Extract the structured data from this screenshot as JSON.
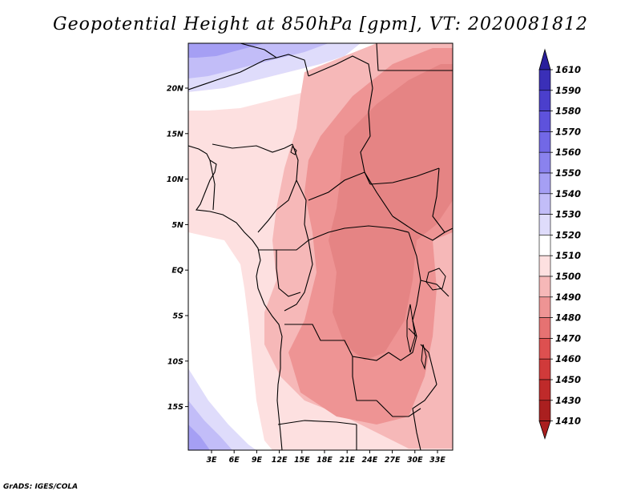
{
  "title": "Geopotential Height at 850hPa [gpm], VT: 2020081812",
  "footer": "GrADS: IGES/COLA",
  "map": {
    "lat_labels": [
      "20N",
      "15N",
      "10N",
      "5N",
      "EQ",
      "5S",
      "10S",
      "15S"
    ],
    "lon_labels": [
      "3E",
      "6E",
      "9E",
      "12E",
      "15E",
      "18E",
      "21E",
      "24E",
      "27E",
      "30E",
      "33E"
    ]
  },
  "colorbar": {
    "levels": [
      "1610",
      "1590",
      "1580",
      "1570",
      "1560",
      "1550",
      "1540",
      "1530",
      "1520",
      "1510",
      "1500",
      "1490",
      "1480",
      "1470",
      "1460",
      "1450",
      "1430",
      "1410"
    ],
    "colors": [
      "#2a1f9c",
      "#3a2fb8",
      "#4b3fcc",
      "#5e52dc",
      "#7268e6",
      "#8a82ee",
      "#a59ff4",
      "#c2bdf8",
      "#dfdcfb",
      "#ffffff",
      "#fde0e0",
      "#f6b8b8",
      "#ee9494",
      "#e67272",
      "#dd5050",
      "#d03a3a",
      "#bf2a2a",
      "#aa1f1f"
    ]
  },
  "fields": {
    "ocean_white": "#ffffff",
    "light_pink": "#fde0e0",
    "medium_pink": "#f6b8b8",
    "dark_pink": "#ee9494",
    "darker_pink": "#e58484",
    "light_blue": "#dfdcfb",
    "mid_blue": "#c2bdf8",
    "deep_blue": "#a59ff4",
    "boundary": "#000000"
  }
}
